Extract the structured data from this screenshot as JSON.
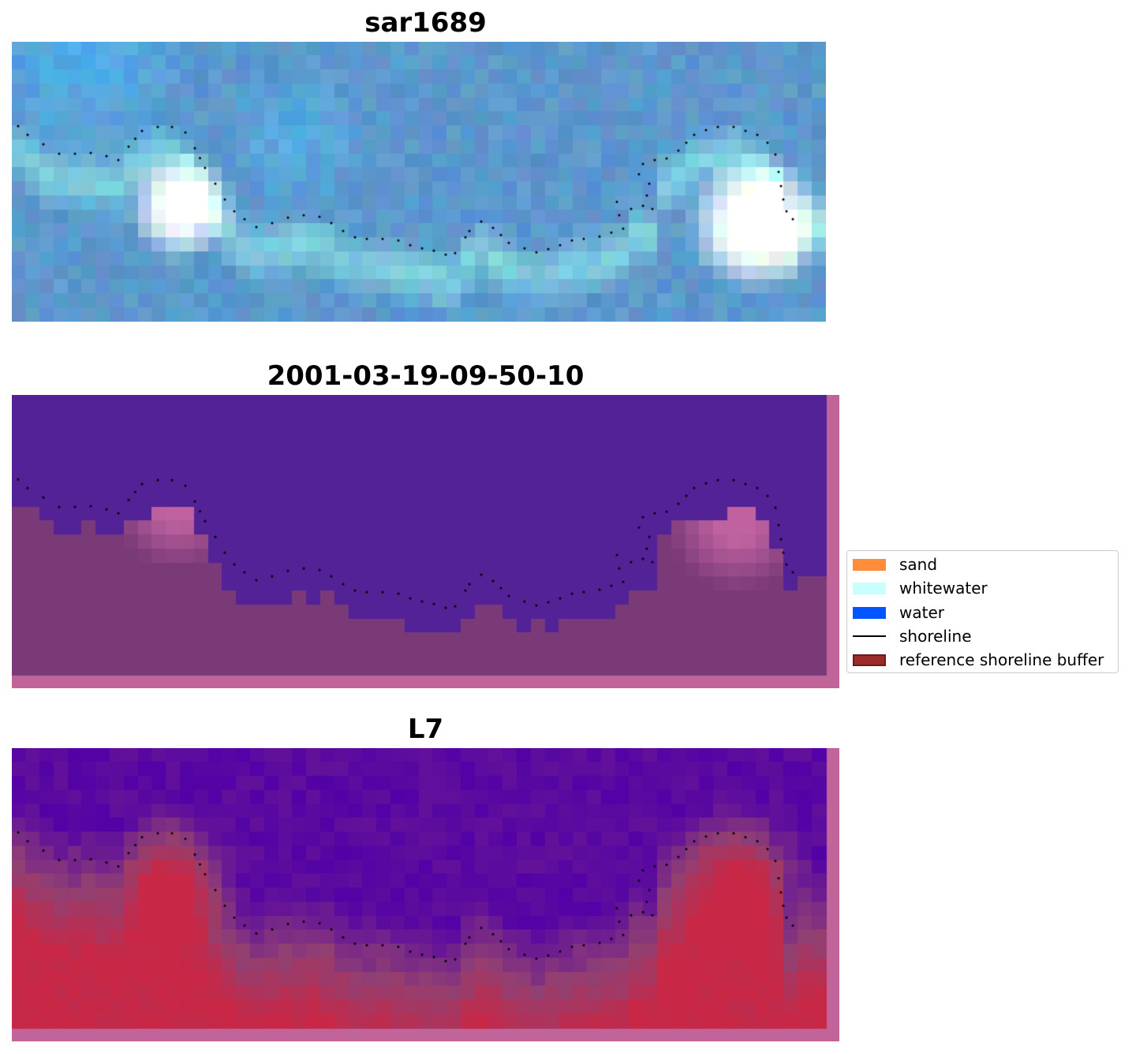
{
  "panels": [
    {
      "title": "sar1689",
      "style": "rgb"
    },
    {
      "title": "2001-03-19-09-50-10",
      "style": "classified"
    },
    {
      "title": "L7",
      "style": "index"
    }
  ],
  "legend": {
    "items": [
      {
        "label": "sand",
        "kind": "patch",
        "color": "#ff8c3a"
      },
      {
        "label": "whitewater",
        "kind": "patch",
        "color": "#c8ffff"
      },
      {
        "label": "water",
        "kind": "patch",
        "color": "#0055ff"
      },
      {
        "label": "shoreline",
        "kind": "line",
        "color": "#000000"
      },
      {
        "label": "reference shoreline buffer",
        "kind": "patch",
        "color": "#9b2b2b",
        "edge": "#6e1a1a"
      }
    ]
  },
  "colors": {
    "background": "#ffffff",
    "shoreline_dots": "#000000",
    "buffer_margin": "#c0649a",
    "classified_water": "#522296",
    "classified_land": "#7a3a78"
  }
}
